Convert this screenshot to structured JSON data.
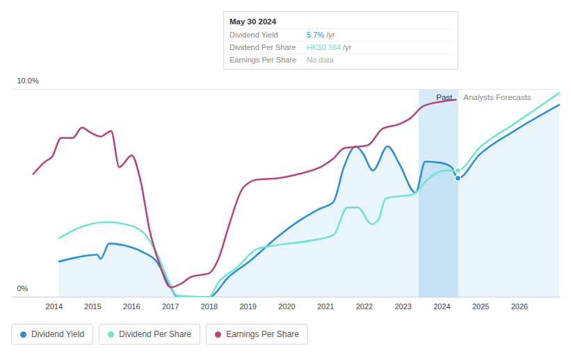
{
  "chart_data": {
    "type": "line",
    "xlim": [
      2012.9,
      2027.05
    ],
    "xticks": [
      2014,
      2015,
      2016,
      2017,
      2018,
      2019,
      2020,
      2021,
      2022,
      2023,
      2024,
      2025,
      2026
    ],
    "ylim": [
      0,
      10
    ],
    "yticks": [
      {
        "value": 0,
        "label": "0%"
      },
      {
        "value": 10,
        "label": "10.0%"
      }
    ],
    "grid": true,
    "legend": "bottom-left",
    "past_range": [
      2023.41,
      2024.41
    ],
    "annotations": [
      "Past",
      "Analysts Forecasts"
    ],
    "tooltip": {
      "title": "May 30 2024",
      "rows": [
        {
          "label": "Dividend Yield",
          "value": "5.7%",
          "unit": "/yr"
        },
        {
          "label": "Dividend Per Share",
          "value": "HK$0.364",
          "unit": "/yr"
        },
        {
          "label": "Earnings Per Share",
          "value": "No data"
        }
      ]
    },
    "series": [
      {
        "name": "Dividend Yield",
        "color": "#2a8fd8",
        "type": "area",
        "x": [
          2014.13,
          2014.75,
          2015.11,
          2015.2,
          2015.42,
          2015.82,
          2016.28,
          2016.63,
          2017.0,
          2017.18,
          2017.99,
          2018.5,
          2019.05,
          2019.77,
          2020.3,
          2020.85,
          2021.2,
          2021.47,
          2021.78,
          2021.96,
          2022.22,
          2022.6,
          2022.9,
          2023.32,
          2023.57,
          2023.98,
          2024.25,
          2024.41,
          2024.97,
          2025.86,
          2027.03
        ],
        "values": [
          1.71,
          1.97,
          2.04,
          1.84,
          2.58,
          2.48,
          2.17,
          1.74,
          0.5,
          0,
          0,
          0.97,
          1.74,
          2.91,
          3.65,
          4.25,
          4.58,
          6.25,
          7.26,
          6.92,
          6.09,
          7.26,
          6.42,
          5.02,
          6.52,
          6.46,
          6.25,
          5.72,
          6.86,
          7.99,
          9.26
        ]
      },
      {
        "name": "Dividend Per Share",
        "color": "#6fe5d0",
        "type": "line",
        "x": [
          2014.13,
          2014.75,
          2015.38,
          2015.82,
          2016.28,
          2016.63,
          2017.0,
          2017.17,
          2017.99,
          2018.25,
          2018.7,
          2019.23,
          2019.77,
          2020.49,
          2021.2,
          2021.56,
          2021.83,
          2022.19,
          2022.37,
          2022.55,
          2023.27,
          2023.62,
          2024.07,
          2024.41,
          2024.97,
          2025.86,
          2027.03
        ],
        "values": [
          2.84,
          3.41,
          3.61,
          3.51,
          3.14,
          2.17,
          0.57,
          0.07,
          0,
          0.74,
          1.4,
          2.31,
          2.51,
          2.68,
          2.98,
          4.31,
          4.31,
          3.51,
          3.75,
          4.75,
          4.95,
          5.65,
          6.09,
          6.09,
          7.19,
          8.33,
          9.83
        ]
      },
      {
        "name": "Earnings Per Share",
        "color": "#b5467f",
        "type": "line",
        "x": [
          2013.46,
          2013.77,
          2013.95,
          2014.18,
          2014.48,
          2014.72,
          2014.93,
          2015.2,
          2015.47,
          2015.68,
          2016.0,
          2016.23,
          2016.46,
          2016.72,
          2017.0,
          2017.27,
          2017.53,
          2017.8,
          2017.99,
          2018.25,
          2018.5,
          2018.87,
          2019.23,
          2019.77,
          2020.3,
          2020.93,
          2021.2,
          2021.47,
          2021.74,
          2022.1,
          2022.46,
          2022.91,
          2023.18,
          2023.53,
          2024.07,
          2024.36
        ],
        "values": [
          5.92,
          6.52,
          6.76,
          7.66,
          7.66,
          8.16,
          7.93,
          7.73,
          7.99,
          6.25,
          6.82,
          5.59,
          3.24,
          1.57,
          0.47,
          0.64,
          0.97,
          1.07,
          1.14,
          1.9,
          3.4,
          5.25,
          5.65,
          5.72,
          5.92,
          6.32,
          6.66,
          7.16,
          7.22,
          7.32,
          8.09,
          8.33,
          8.6,
          9.2,
          9.43,
          9.5
        ]
      }
    ]
  }
}
